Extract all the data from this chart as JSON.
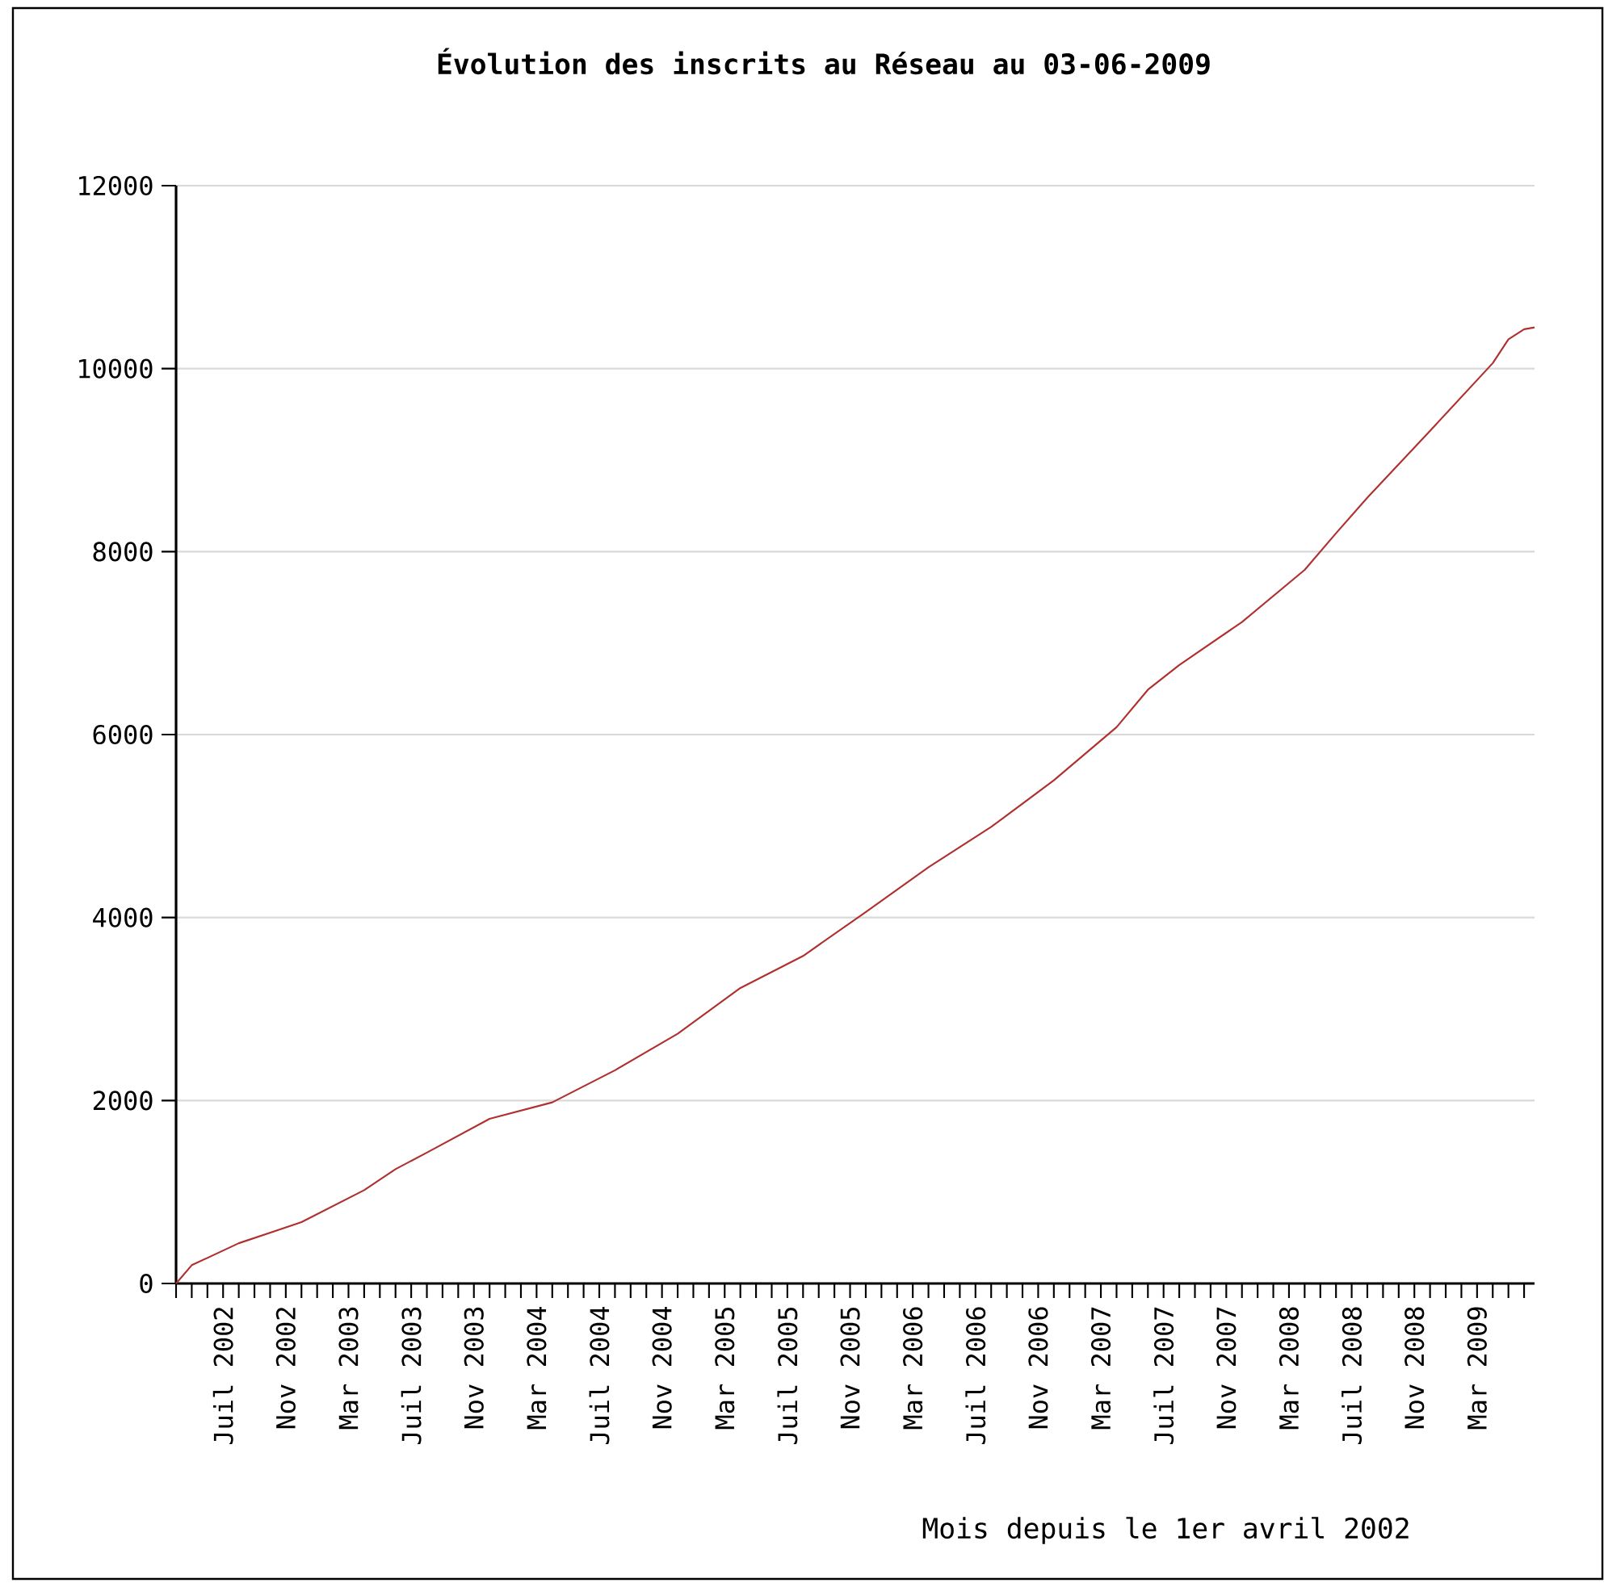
{
  "chart_data": {
    "type": "line",
    "title": "Évolution des inscrits au Réseau au 03-06-2009",
    "xlabel": "Mois depuis le 1er avril 2002",
    "x": [
      "2002-04",
      "2002-05",
      "2002-08",
      "2002-12",
      "2003-04",
      "2003-06",
      "2003-08",
      "2003-12",
      "2004-04",
      "2004-08",
      "2004-12",
      "2005-04",
      "2005-08",
      "2005-12",
      "2006-04",
      "2006-08",
      "2006-12",
      "2007-04",
      "2007-06",
      "2007-08",
      "2007-12",
      "2008-04",
      "2008-06",
      "2008-08",
      "2008-12",
      "2009-04",
      "2009-05",
      "2009-06",
      "2009-06-21"
    ],
    "series": [
      {
        "color": "#b03030",
        "values": [
          0,
          200,
          440,
          670,
          1020,
          1250,
          1430,
          1800,
          1980,
          2330,
          2730,
          3230,
          3580,
          4060,
          4550,
          4990,
          5500,
          6080,
          6490,
          6760,
          7230,
          7800,
          8200,
          8590,
          9320,
          10060,
          10320,
          10430,
          10450
        ]
      }
    ],
    "xlim": [
      "2002-04",
      "2009-06-21"
    ],
    "ylim": [
      0,
      12000
    ],
    "yticks": [
      0,
      2000,
      4000,
      6000,
      8000,
      10000,
      12000
    ],
    "xticks": [
      {
        "value": "2002-07",
        "label": "Juil 2002"
      },
      {
        "value": "2002-11",
        "label": "Nov 2002"
      },
      {
        "value": "2003-03",
        "label": "Mar 2003"
      },
      {
        "value": "2003-07",
        "label": "Juil 2003"
      },
      {
        "value": "2003-11",
        "label": "Nov 2003"
      },
      {
        "value": "2004-03",
        "label": "Mar 2004"
      },
      {
        "value": "2004-07",
        "label": "Juil 2004"
      },
      {
        "value": "2004-11",
        "label": "Nov 2004"
      },
      {
        "value": "2005-03",
        "label": "Mar 2005"
      },
      {
        "value": "2005-07",
        "label": "Juil 2005"
      },
      {
        "value": "2005-11",
        "label": "Nov 2005"
      },
      {
        "value": "2006-03",
        "label": "Mar 2006"
      },
      {
        "value": "2006-07",
        "label": "Juil 2006"
      },
      {
        "value": "2006-11",
        "label": "Nov 2006"
      },
      {
        "value": "2007-03",
        "label": "Mar 2007"
      },
      {
        "value": "2007-07",
        "label": "Juil 2007"
      },
      {
        "value": "2007-11",
        "label": "Nov 2007"
      },
      {
        "value": "2008-03",
        "label": "Mar 2008"
      },
      {
        "value": "2008-07",
        "label": "Juil 2008"
      },
      {
        "value": "2008-11",
        "label": "Nov 2008"
      },
      {
        "value": "2009-03",
        "label": "Mar 2009"
      },
      {
        "value": "2002-04",
        "label": null
      },
      {
        "value": "2002-05",
        "label": null
      },
      {
        "value": "2002-06",
        "label": null
      },
      {
        "value": "2002-08",
        "label": null
      },
      {
        "value": "2002-09",
        "label": null
      },
      {
        "value": "2002-10",
        "label": null
      },
      {
        "value": "2002-12",
        "label": null
      },
      {
        "value": "2003-01",
        "label": null
      },
      {
        "value": "2003-02",
        "label": null
      },
      {
        "value": "2003-04",
        "label": null
      },
      {
        "value": "2003-05",
        "label": null
      },
      {
        "value": "2003-06",
        "label": null
      },
      {
        "value": "2003-08",
        "label": null
      },
      {
        "value": "2003-09",
        "label": null
      },
      {
        "value": "2003-10",
        "label": null
      },
      {
        "value": "2003-12",
        "label": null
      },
      {
        "value": "2004-01",
        "label": null
      },
      {
        "value": "2004-02",
        "label": null
      },
      {
        "value": "2004-04",
        "label": null
      },
      {
        "value": "2004-05",
        "label": null
      },
      {
        "value": "2004-06",
        "label": null
      },
      {
        "value": "2004-08",
        "label": null
      },
      {
        "value": "2004-09",
        "label": null
      },
      {
        "value": "2004-10",
        "label": null
      },
      {
        "value": "2004-12",
        "label": null
      },
      {
        "value": "2005-01",
        "label": null
      },
      {
        "value": "2005-02",
        "label": null
      },
      {
        "value": "2005-04",
        "label": null
      },
      {
        "value": "2005-05",
        "label": null
      },
      {
        "value": "2005-06",
        "label": null
      },
      {
        "value": "2005-08",
        "label": null
      },
      {
        "value": "2005-09",
        "label": null
      },
      {
        "value": "2005-10",
        "label": null
      },
      {
        "value": "2005-12",
        "label": null
      },
      {
        "value": "2006-01",
        "label": null
      },
      {
        "value": "2006-02",
        "label": null
      },
      {
        "value": "2006-04",
        "label": null
      },
      {
        "value": "2006-05",
        "label": null
      },
      {
        "value": "2006-06",
        "label": null
      },
      {
        "value": "2006-08",
        "label": null
      },
      {
        "value": "2006-09",
        "label": null
      },
      {
        "value": "2006-10",
        "label": null
      },
      {
        "value": "2006-12",
        "label": null
      },
      {
        "value": "2007-01",
        "label": null
      },
      {
        "value": "2007-02",
        "label": null
      },
      {
        "value": "2007-04",
        "label": null
      },
      {
        "value": "2007-05",
        "label": null
      },
      {
        "value": "2007-06",
        "label": null
      },
      {
        "value": "2007-08",
        "label": null
      },
      {
        "value": "2007-09",
        "label": null
      },
      {
        "value": "2007-10",
        "label": null
      },
      {
        "value": "2007-12",
        "label": null
      },
      {
        "value": "2008-01",
        "label": null
      },
      {
        "value": "2008-02",
        "label": null
      },
      {
        "value": "2008-04",
        "label": null
      },
      {
        "value": "2008-05",
        "label": null
      },
      {
        "value": "2008-06",
        "label": null
      },
      {
        "value": "2008-08",
        "label": null
      },
      {
        "value": "2008-09",
        "label": null
      },
      {
        "value": "2008-10",
        "label": null
      },
      {
        "value": "2008-12",
        "label": null
      },
      {
        "value": "2009-01",
        "label": null
      },
      {
        "value": "2009-02",
        "label": null
      },
      {
        "value": "2009-04",
        "label": null
      },
      {
        "value": "2009-05",
        "label": null
      },
      {
        "value": "2009-06",
        "label": null
      }
    ],
    "grid": "y",
    "marker": "none",
    "line_style": "solid"
  }
}
